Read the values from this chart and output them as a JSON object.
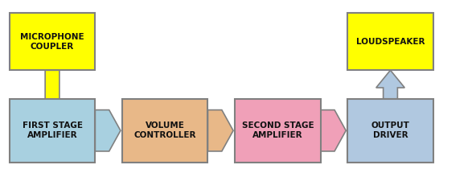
{
  "background_color": "#ffffff",
  "blocks_top": [
    {
      "label": "FIRST STAGE\nAMPLIFIER",
      "color": "#a8d0e0",
      "edgecolor": "#808080"
    },
    {
      "label": "VOLUME\nCONTROLLER",
      "color": "#e8b888",
      "edgecolor": "#808080"
    },
    {
      "label": "SECOND STAGE\nAMPLIFIER",
      "color": "#f0a0b8",
      "edgecolor": "#808080"
    },
    {
      "label": "OUTPUT\nDRIVER",
      "color": "#b0c8e0",
      "edgecolor": "#808080"
    }
  ],
  "blocks_bot": [
    {
      "label": "MICROPHONE\nCOUPLER",
      "color": "#ffff00",
      "edgecolor": "#808080"
    },
    {
      "label": "LOUDSPEAKER",
      "color": "#ffff00",
      "edgecolor": "#808080"
    }
  ],
  "connector_colors": [
    "#a8d0e0",
    "#e8b888",
    "#f0a0b8"
  ],
  "v_arrow_up_color": "#ffff00",
  "v_arrow_up_edge": "#808080",
  "v_arrow_down_color": "#b0c8e0",
  "v_arrow_down_edge": "#808080",
  "fontsize": 7.5,
  "fontweight": "bold",
  "fontcolor": "#111111"
}
